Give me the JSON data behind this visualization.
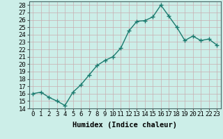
{
  "x": [
    0,
    1,
    2,
    3,
    4,
    5,
    6,
    7,
    8,
    9,
    10,
    11,
    12,
    13,
    14,
    15,
    16,
    17,
    18,
    19,
    20,
    21,
    22,
    23
  ],
  "y": [
    16,
    16.2,
    15.5,
    15.0,
    14.4,
    16.2,
    17.2,
    18.5,
    19.8,
    20.5,
    21.0,
    22.2,
    24.5,
    25.8,
    25.9,
    26.4,
    28.0,
    26.5,
    25.0,
    23.2,
    23.8,
    23.2,
    23.4,
    22.6
  ],
  "line_color": "#1a7a6e",
  "marker": "+",
  "marker_size": 4,
  "background_color": "#cceee8",
  "grid_color": "#c8aeb0",
  "title": "",
  "xlabel": "Humidex (Indice chaleur)",
  "ylabel": "",
  "ylim": [
    14,
    28.5
  ],
  "xlim": [
    -0.5,
    23.5
  ],
  "yticks": [
    14,
    15,
    16,
    17,
    18,
    19,
    20,
    21,
    22,
    23,
    24,
    25,
    26,
    27,
    28
  ],
  "xticks": [
    0,
    1,
    2,
    3,
    4,
    5,
    6,
    7,
    8,
    9,
    10,
    11,
    12,
    13,
    14,
    15,
    16,
    17,
    18,
    19,
    20,
    21,
    22,
    23
  ],
  "xtick_labels": [
    "0",
    "1",
    "2",
    "3",
    "4",
    "5",
    "6",
    "7",
    "8",
    "9",
    "10",
    "11",
    "12",
    "13",
    "14",
    "15",
    "16",
    "17",
    "18",
    "19",
    "20",
    "21",
    "22",
    "23"
  ],
  "ytick_labels": [
    "14",
    "15",
    "16",
    "17",
    "18",
    "19",
    "20",
    "21",
    "22",
    "23",
    "24",
    "25",
    "26",
    "27",
    "28"
  ],
  "font_size": 6.5,
  "xlabel_fontsize": 7.5,
  "linewidth": 1.0,
  "marker_linewidth": 1.0
}
